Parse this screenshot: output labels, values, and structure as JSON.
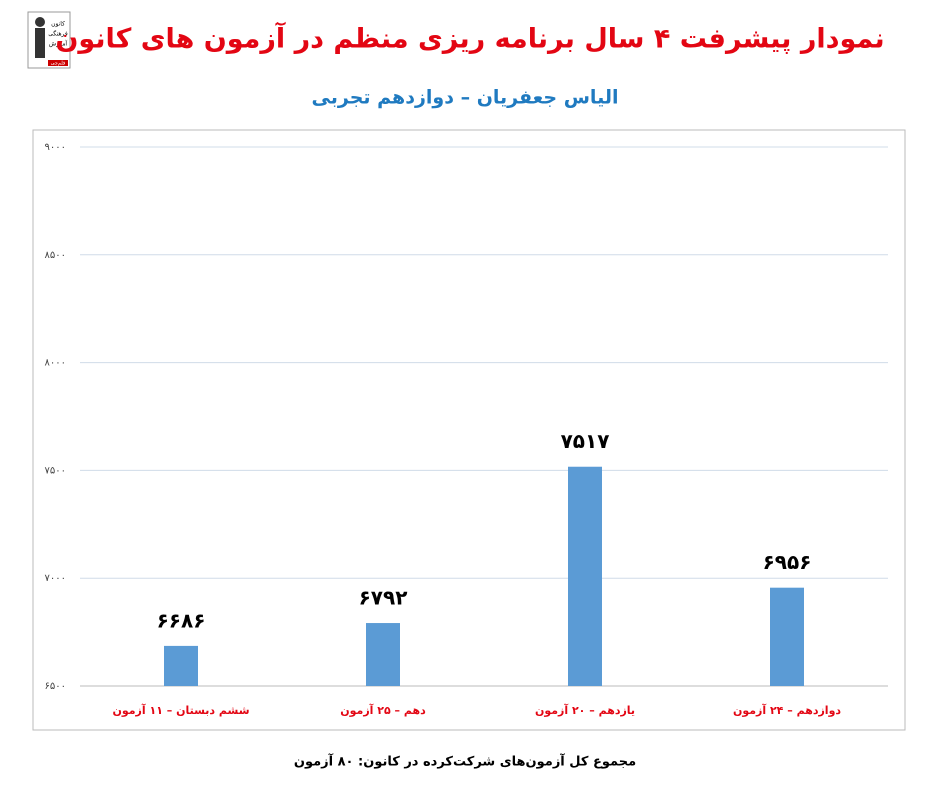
{
  "logo": [
    "کانون",
    "فرهنگی",
    "آموزش",
    "قلم‌چی"
  ],
  "chart_data": {
    "type": "bar",
    "title": "نمودار پیشرفت ۴ سال برنامه ریزی منظم در آزمون های کانون",
    "subtitle": "الیاس جعفریان – دوازدهم تجربی",
    "categories": [
      "ششم دبستان – ۱۱ آزمون",
      "دهم – ۲۵ آزمون",
      "یازدهم – ۲۰ آزمون",
      "دوازدهم – ۲۴ آزمون"
    ],
    "values": [
      6686,
      6792,
      7517,
      6956
    ],
    "value_labels": [
      "۶۶۸۶",
      "۶۷۹۲",
      "۷۵۱۷",
      "۶۹۵۶"
    ],
    "color": "#5b9bd5",
    "ylim": [
      6500,
      9000
    ],
    "yticks": [
      {
        "value": 6500,
        "label": "۶۵۰۰"
      },
      {
        "value": 7000,
        "label": "۷۰۰۰"
      },
      {
        "value": 7500,
        "label": "۷۵۰۰"
      },
      {
        "value": 8000,
        "label": "۸۰۰۰"
      },
      {
        "value": 8500,
        "label": "۸۵۰۰"
      },
      {
        "value": 9000,
        "label": "۹۰۰۰"
      }
    ],
    "grid": true,
    "footnote": "مجموع کل آزمون‌های شرکت‌کرده در کانون: ۸۰ آزمون"
  }
}
